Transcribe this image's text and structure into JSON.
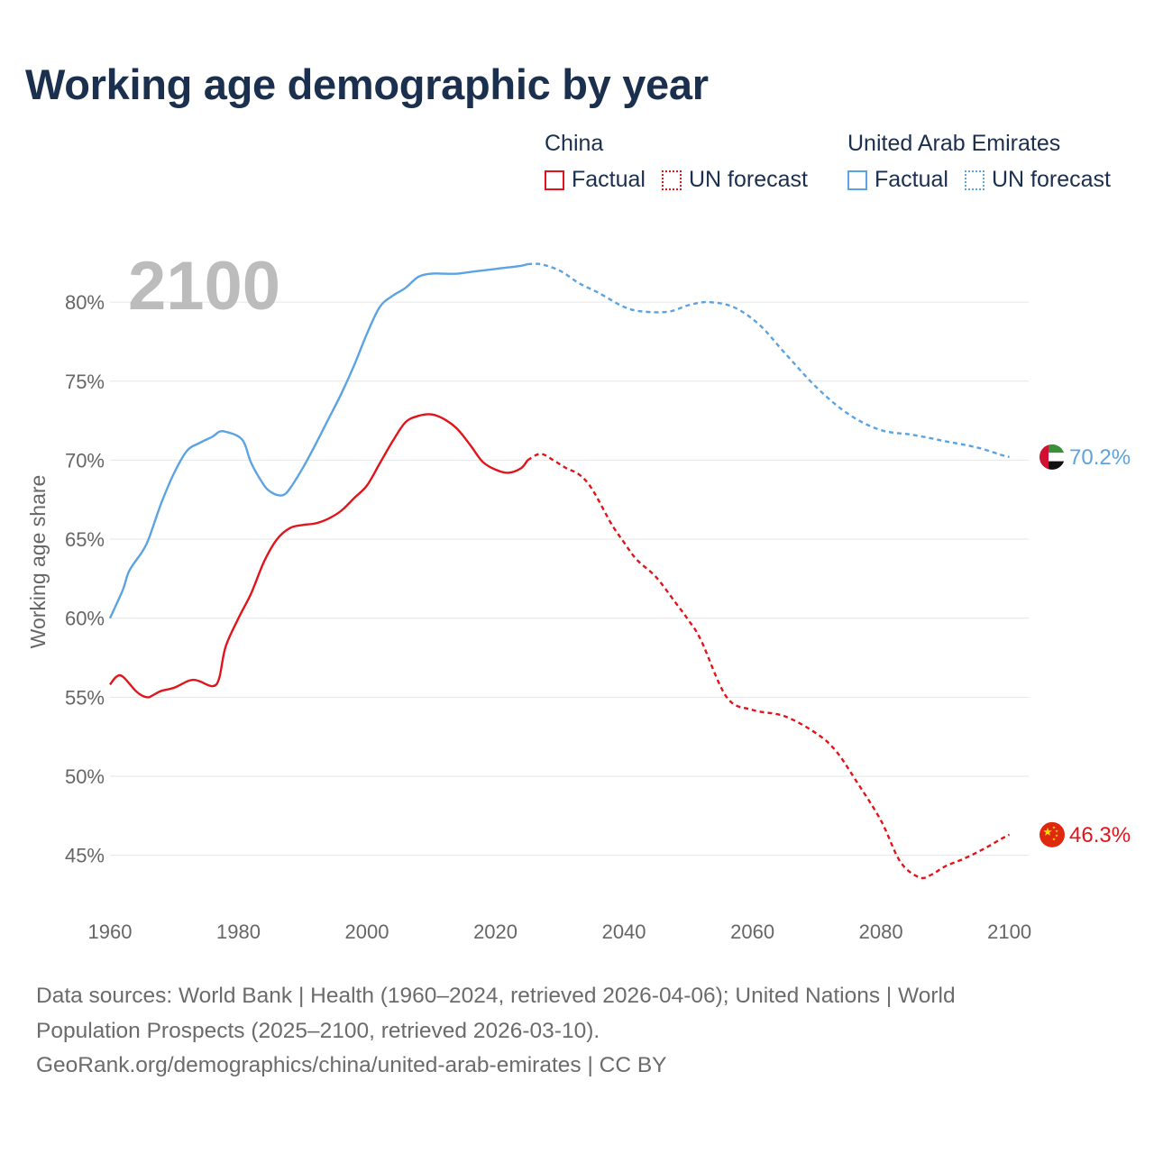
{
  "title": "Working age demographic by year",
  "legend": {
    "groups": [
      {
        "name": "China",
        "color": "#e2141b",
        "factual_label": "Factual",
        "forecast_label": "UN forecast"
      },
      {
        "name": "United Arab Emirates",
        "color": "#5ba3e2",
        "factual_label": "Factual",
        "forecast_label": "UN forecast"
      }
    ]
  },
  "footer": {
    "line1": "Data sources: World Bank | Health (1960–2024, retrieved 2026-04-06); United Nations | World",
    "line2": "Population Prospects (2025–2100, retrieved 2026-03-10).",
    "line3": "GeoRank.org/demographics/china/united-arab-emirates | CC BY"
  },
  "chart_data": {
    "type": "line",
    "title": "Working age demographic by year",
    "current_year_label": "2100",
    "xlabel": "",
    "ylabel": "Working age share",
    "xlim": [
      1960,
      2103
    ],
    "ylim": [
      41.5,
      84
    ],
    "x_ticks": [
      1960,
      1980,
      2000,
      2020,
      2040,
      2060,
      2080,
      2100
    ],
    "y_ticks": [
      45,
      50,
      55,
      60,
      65,
      70,
      75,
      80
    ],
    "y_tick_labels": [
      "45%",
      "50%",
      "55%",
      "60%",
      "65%",
      "70%",
      "75%",
      "80%"
    ],
    "forecast_start_year": 2025,
    "series": [
      {
        "name": "United Arab Emirates",
        "color": "#5ba3e2",
        "end_value": 70.2,
        "end_label": "70.2%",
        "flag": "uae-flag",
        "points": [
          [
            1960,
            60.0
          ],
          [
            1962,
            61.8
          ],
          [
            1963,
            63.0
          ],
          [
            1965,
            64.2
          ],
          [
            1966,
            65.0
          ],
          [
            1968,
            67.3
          ],
          [
            1970,
            69.2
          ],
          [
            1972,
            70.6
          ],
          [
            1974,
            71.1
          ],
          [
            1976,
            71.5
          ],
          [
            1977,
            71.8
          ],
          [
            1978,
            71.8
          ],
          [
            1980,
            71.5
          ],
          [
            1981,
            71.0
          ],
          [
            1982,
            69.8
          ],
          [
            1984,
            68.4
          ],
          [
            1985,
            68.0
          ],
          [
            1986,
            67.8
          ],
          [
            1987,
            67.8
          ],
          [
            1988,
            68.2
          ],
          [
            1990,
            69.5
          ],
          [
            1992,
            71.0
          ],
          [
            1994,
            72.6
          ],
          [
            1996,
            74.2
          ],
          [
            1998,
            76.0
          ],
          [
            2000,
            78.0
          ],
          [
            2002,
            79.7
          ],
          [
            2004,
            80.4
          ],
          [
            2006,
            80.9
          ],
          [
            2008,
            81.6
          ],
          [
            2010,
            81.8
          ],
          [
            2012,
            81.8
          ],
          [
            2014,
            81.8
          ],
          [
            2016,
            81.9
          ],
          [
            2018,
            82.0
          ],
          [
            2020,
            82.1
          ],
          [
            2022,
            82.2
          ],
          [
            2024,
            82.3
          ],
          [
            2025,
            82.4
          ],
          [
            2027,
            82.4
          ],
          [
            2030,
            82.0
          ],
          [
            2033,
            81.2
          ],
          [
            2036,
            80.6
          ],
          [
            2040,
            79.7
          ],
          [
            2043,
            79.4
          ],
          [
            2047,
            79.4
          ],
          [
            2050,
            79.8
          ],
          [
            2053,
            80.0
          ],
          [
            2057,
            79.7
          ],
          [
            2061,
            78.6
          ],
          [
            2065,
            76.8
          ],
          [
            2070,
            74.6
          ],
          [
            2075,
            72.9
          ],
          [
            2080,
            71.9
          ],
          [
            2085,
            71.6
          ],
          [
            2090,
            71.2
          ],
          [
            2095,
            70.8
          ],
          [
            2099,
            70.3
          ],
          [
            2100,
            70.2
          ]
        ]
      },
      {
        "name": "China",
        "color": "#e2141b",
        "end_value": 46.3,
        "end_label": "46.3%",
        "flag": "china-flag",
        "points": [
          [
            1960,
            55.8
          ],
          [
            1961,
            56.3
          ],
          [
            1962,
            56.3
          ],
          [
            1964,
            55.4
          ],
          [
            1965,
            55.1
          ],
          [
            1966,
            55.0
          ],
          [
            1967,
            55.2
          ],
          [
            1968,
            55.4
          ],
          [
            1970,
            55.6
          ],
          [
            1972,
            56.0
          ],
          [
            1973,
            56.1
          ],
          [
            1974,
            56.0
          ],
          [
            1976,
            55.7
          ],
          [
            1977,
            56.2
          ],
          [
            1978,
            58.2
          ],
          [
            1980,
            60.0
          ],
          [
            1982,
            61.6
          ],
          [
            1984,
            63.6
          ],
          [
            1986,
            65.0
          ],
          [
            1988,
            65.7
          ],
          [
            1990,
            65.9
          ],
          [
            1992,
            66.0
          ],
          [
            1994,
            66.3
          ],
          [
            1996,
            66.8
          ],
          [
            1998,
            67.6
          ],
          [
            2000,
            68.4
          ],
          [
            2002,
            69.8
          ],
          [
            2004,
            71.2
          ],
          [
            2006,
            72.4
          ],
          [
            2008,
            72.8
          ],
          [
            2010,
            72.9
          ],
          [
            2012,
            72.6
          ],
          [
            2014,
            72.0
          ],
          [
            2016,
            71.0
          ],
          [
            2018,
            69.9
          ],
          [
            2020,
            69.4
          ],
          [
            2022,
            69.2
          ],
          [
            2024,
            69.5
          ],
          [
            2025,
            70.0
          ],
          [
            2027,
            70.4
          ],
          [
            2029,
            70.0
          ],
          [
            2031,
            69.5
          ],
          [
            2033,
            69.1
          ],
          [
            2035,
            68.2
          ],
          [
            2038,
            66.0
          ],
          [
            2040,
            64.8
          ],
          [
            2042,
            63.7
          ],
          [
            2045,
            62.6
          ],
          [
            2048,
            61.0
          ],
          [
            2050,
            59.9
          ],
          [
            2052,
            58.6
          ],
          [
            2056,
            55.0
          ],
          [
            2060,
            54.2
          ],
          [
            2065,
            53.8
          ],
          [
            2070,
            52.7
          ],
          [
            2073,
            51.6
          ],
          [
            2076,
            49.8
          ],
          [
            2080,
            47.2
          ],
          [
            2083,
            44.6
          ],
          [
            2086,
            43.6
          ],
          [
            2088,
            43.8
          ],
          [
            2090,
            44.3
          ],
          [
            2093,
            44.8
          ],
          [
            2096,
            45.4
          ],
          [
            2099,
            46.1
          ],
          [
            2100,
            46.3
          ]
        ]
      }
    ]
  }
}
